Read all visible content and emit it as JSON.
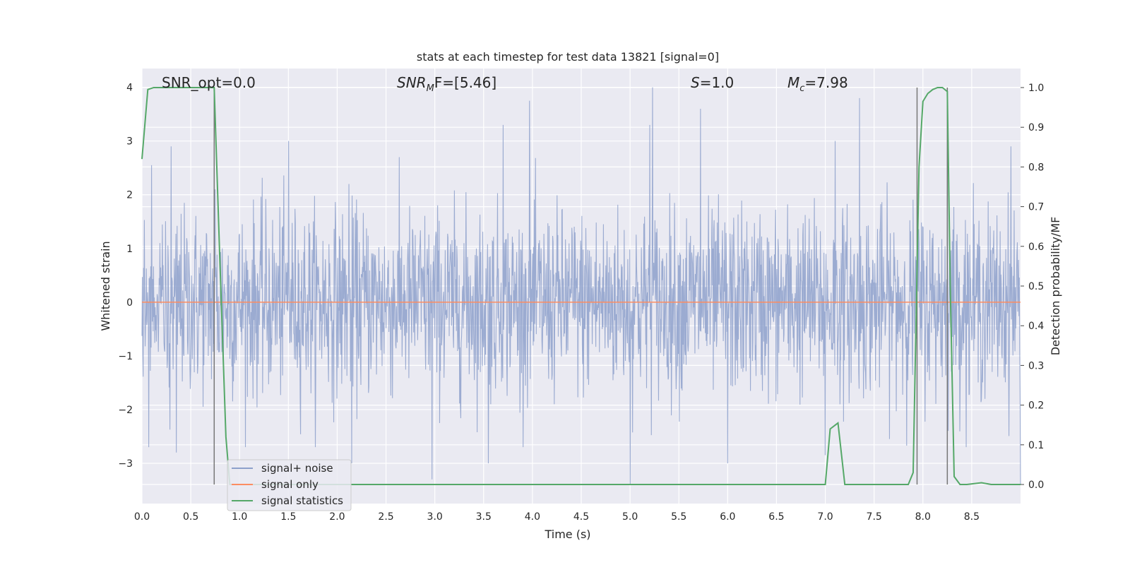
{
  "chart_data": {
    "type": "line",
    "title": "stats at each timestep for test data 13821 [signal=0]",
    "xlabel": "Time (s)",
    "ylabel_left": "Whitened strain",
    "ylabel_right": "Detection probability/MF",
    "xlim": [
      0,
      9
    ],
    "ylim_left": [
      -3.75,
      4.35
    ],
    "ylim_right": [
      -0.048,
      1.048
    ],
    "x_ticks": [
      "0.0",
      "0.5",
      "1.0",
      "1.5",
      "2.0",
      "2.5",
      "3.0",
      "3.5",
      "4.0",
      "4.5",
      "5.0",
      "5.5",
      "6.0",
      "6.5",
      "7.0",
      "7.5",
      "8.0",
      "8.5"
    ],
    "y_left_ticks": [
      "−3",
      "−2",
      "−1",
      "0",
      "1",
      "2",
      "3",
      "4"
    ],
    "y_right_ticks": [
      "0.0",
      "0.1",
      "0.2",
      "0.3",
      "0.4",
      "0.5",
      "0.6",
      "0.7",
      "0.8",
      "0.9",
      "1.0"
    ],
    "grid": true,
    "legend_position": "lower-left",
    "annotations": {
      "snr_opt": "SNR_opt=0.0",
      "snr_mf_prefix": "SNR",
      "snr_mf_sub": "M",
      "snr_mf_rest": "F=[5.46]",
      "s_label": "S",
      "s_value": "=1.0",
      "mc_label": "M",
      "mc_sub": "c",
      "mc_value": "=7.98"
    },
    "series": [
      {
        "name": "signal+ noise",
        "axis": "left",
        "color": "#8da0cb",
        "description_values": {
          "n_points": 2200,
          "sigma": 0.85,
          "peaks": [
            [
              0.1,
              2.55
            ],
            [
              0.3,
              2.9
            ],
            [
              0.75,
              2.1
            ],
            [
              1.5,
              3.0
            ],
            [
              2.12,
              2.2
            ],
            [
              2.97,
              2.6
            ],
            [
              3.7,
              3.3
            ],
            [
              3.97,
              3.75
            ],
            [
              5.23,
              4.0
            ],
            [
              5.2,
              3.3
            ],
            [
              5.72,
              3.6
            ],
            [
              6.0,
              2.6
            ],
            [
              7.35,
              3.8
            ],
            [
              7.1,
              3.0
            ],
            [
              8.25,
              2.8
            ],
            [
              8.9,
              2.9
            ],
            [
              2.97,
              -3.3
            ],
            [
              5.0,
              -3.4
            ],
            [
              2.15,
              -3.0
            ],
            [
              7.0,
              -2.85
            ],
            [
              0.35,
              -2.8
            ],
            [
              3.55,
              -3.0
            ],
            [
              6.0,
              -3.0
            ],
            [
              9.0,
              -3.4
            ]
          ]
        }
      },
      {
        "name": "signal only",
        "axis": "left",
        "color": "#fc8d62",
        "x": [
          0,
          9
        ],
        "y": [
          0,
          0
        ]
      },
      {
        "name": "signal statistics",
        "axis": "right",
        "color": "#55a868",
        "x": [
          0,
          0.06,
          0.12,
          0.2,
          0.4,
          0.6,
          0.74,
          0.8,
          0.86,
          0.9,
          6.8,
          7.0,
          7.05,
          7.13,
          7.2,
          7.85,
          7.9,
          7.96,
          8.0,
          8.05,
          8.1,
          8.15,
          8.2,
          8.25,
          8.28,
          8.32,
          8.38,
          8.45,
          8.6,
          8.7,
          9.0
        ],
        "y": [
          0.82,
          0.995,
          1.0,
          1.0,
          1.0,
          1.0,
          1.0,
          0.55,
          0.12,
          0.0,
          0.0,
          0.0,
          0.14,
          0.155,
          0.0,
          0.0,
          0.03,
          0.8,
          0.965,
          0.985,
          0.995,
          1.0,
          1.0,
          0.99,
          0.5,
          0.02,
          0.0,
          0.0,
          0.0045,
          0.0,
          0.0
        ]
      }
    ],
    "vertical_lines": [
      0.74,
      7.94,
      8.25
    ],
    "vertical_line_color": "#777777"
  }
}
